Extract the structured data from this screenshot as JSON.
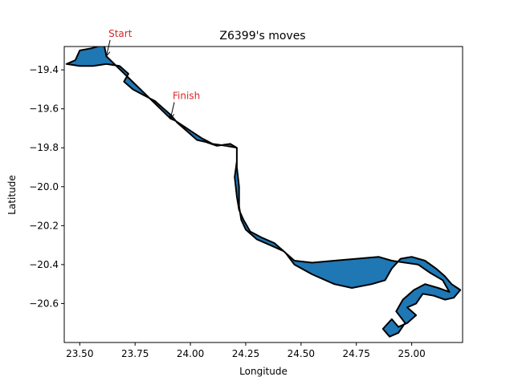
{
  "chart_data": {
    "type": "line",
    "title": "Z6399's moves",
    "xlabel": "Longitude",
    "ylabel": "Latitude",
    "xlim": [
      23.43,
      25.23
    ],
    "ylim": [
      -20.8,
      -19.28
    ],
    "xticks": [
      23.5,
      23.75,
      24.0,
      24.25,
      24.5,
      24.75,
      25.0
    ],
    "xtick_labels": [
      "23.50",
      "23.75",
      "24.00",
      "24.25",
      "24.50",
      "24.75",
      "25.00"
    ],
    "yticks": [
      -19.4,
      -19.6,
      -19.8,
      -20.0,
      -20.2,
      -20.4,
      -20.6
    ],
    "ytick_labels": [
      "−19.4",
      "−19.6",
      "−19.8",
      "−20.0",
      "−20.2",
      "−20.4",
      "−20.6"
    ],
    "grid": false,
    "fill_color": "#1f77b4",
    "line_color": "#000000",
    "annotation_color": "#d62728",
    "annotations": [
      {
        "text": "Start",
        "x": 23.62,
        "y": -19.33,
        "text_x": 23.63,
        "text_y": -19.23
      },
      {
        "text": "Finish",
        "x": 23.91,
        "y": -19.65,
        "text_x": 23.92,
        "text_y": -19.55
      }
    ],
    "series": [
      {
        "values": [
          [
            23.62,
            -19.33
          ],
          [
            23.61,
            -19.27
          ],
          [
            23.55,
            -19.29
          ],
          [
            23.5,
            -19.3
          ],
          [
            23.48,
            -19.35
          ],
          [
            23.44,
            -19.37
          ],
          [
            23.5,
            -19.38
          ],
          [
            23.56,
            -19.38
          ],
          [
            23.62,
            -19.37
          ],
          [
            23.68,
            -19.38
          ],
          [
            23.72,
            -19.42
          ],
          [
            23.7,
            -19.46
          ],
          [
            23.74,
            -19.5
          ],
          [
            23.79,
            -19.53
          ],
          [
            23.84,
            -19.56
          ],
          [
            23.88,
            -19.6
          ],
          [
            23.91,
            -19.63
          ],
          [
            23.94,
            -19.67
          ],
          [
            23.97,
            -19.7
          ],
          [
            24.0,
            -19.73
          ],
          [
            24.03,
            -19.76
          ],
          [
            24.07,
            -19.77
          ],
          [
            24.12,
            -19.79
          ],
          [
            24.18,
            -19.78
          ],
          [
            24.21,
            -19.8
          ],
          [
            24.21,
            -19.87
          ],
          [
            24.2,
            -19.95
          ],
          [
            24.21,
            -20.05
          ],
          [
            24.22,
            -20.12
          ],
          [
            24.24,
            -20.17
          ],
          [
            24.27,
            -20.23
          ],
          [
            24.32,
            -20.26
          ],
          [
            24.38,
            -20.29
          ],
          [
            24.43,
            -20.34
          ],
          [
            24.47,
            -20.4
          ],
          [
            24.55,
            -20.45
          ],
          [
            24.65,
            -20.5
          ],
          [
            24.73,
            -20.52
          ],
          [
            24.82,
            -20.5
          ],
          [
            24.88,
            -20.48
          ],
          [
            24.91,
            -20.42
          ],
          [
            24.95,
            -20.37
          ],
          [
            25.0,
            -20.36
          ],
          [
            25.06,
            -20.38
          ],
          [
            25.11,
            -20.42
          ],
          [
            25.15,
            -20.46
          ],
          [
            25.18,
            -20.5
          ],
          [
            25.22,
            -20.53
          ],
          [
            25.19,
            -20.57
          ],
          [
            25.15,
            -20.58
          ],
          [
            25.1,
            -20.56
          ],
          [
            25.05,
            -20.55
          ],
          [
            25.02,
            -20.6
          ],
          [
            24.98,
            -20.62
          ],
          [
            25.02,
            -20.66
          ],
          [
            24.98,
            -20.7
          ],
          [
            24.94,
            -20.72
          ],
          [
            24.91,
            -20.68
          ],
          [
            24.87,
            -20.73
          ],
          [
            24.9,
            -20.77
          ],
          [
            24.94,
            -20.75
          ],
          [
            24.97,
            -20.7
          ],
          [
            24.93,
            -20.64
          ],
          [
            24.96,
            -20.58
          ],
          [
            25.01,
            -20.53
          ],
          [
            25.06,
            -20.5
          ],
          [
            25.12,
            -20.52
          ],
          [
            25.17,
            -20.54
          ],
          [
            25.14,
            -20.48
          ],
          [
            25.08,
            -20.44
          ],
          [
            25.03,
            -20.4
          ],
          [
            24.97,
            -20.39
          ],
          [
            24.91,
            -20.38
          ],
          [
            24.85,
            -20.36
          ],
          [
            24.75,
            -20.37
          ],
          [
            24.65,
            -20.38
          ],
          [
            24.55,
            -20.39
          ],
          [
            24.47,
            -20.38
          ],
          [
            24.42,
            -20.33
          ],
          [
            24.36,
            -20.3
          ],
          [
            24.3,
            -20.27
          ],
          [
            24.25,
            -20.22
          ],
          [
            24.23,
            -20.17
          ],
          [
            24.22,
            -20.1
          ],
          [
            24.22,
            -20.0
          ],
          [
            24.21,
            -19.9
          ],
          [
            24.21,
            -19.8
          ],
          [
            24.16,
            -19.79
          ],
          [
            24.1,
            -19.78
          ],
          [
            24.05,
            -19.75
          ],
          [
            24.01,
            -19.72
          ],
          [
            23.97,
            -19.69
          ],
          [
            23.93,
            -19.66
          ],
          [
            23.91,
            -19.65
          ]
        ]
      }
    ]
  }
}
